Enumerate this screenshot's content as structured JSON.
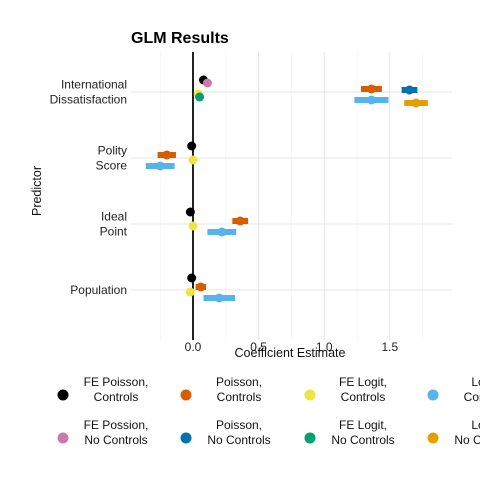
{
  "chart_data": {
    "type": "scatter",
    "subtype": "coefficient-plot",
    "title": "GLM Results",
    "xlabel": "Coefficient Estimate",
    "ylabel": "Predictor",
    "xlim": [
      -0.45,
      1.95
    ],
    "x_ticks": [
      "0.0",
      "0.5",
      "1.0",
      "1.5"
    ],
    "categories": [
      [
        "International",
        "Dissatisfaction"
      ],
      [
        "Polity",
        "Score"
      ],
      [
        "Ideal",
        "Point"
      ],
      [
        "Population"
      ]
    ],
    "reference_line_x": 0,
    "grid": true,
    "legend_position": "bottom",
    "series": [
      {
        "name": [
          "FE Poisson,",
          "Controls"
        ],
        "color": "#000000",
        "values": [
          0.08,
          -0.01,
          -0.02,
          -0.01
        ],
        "ci": [
          [
            0.06,
            0.1
          ],
          [
            -0.02,
            0.0
          ],
          [
            -0.03,
            -0.01
          ],
          [
            -0.02,
            0.0
          ]
        ]
      },
      {
        "name": [
          "FE Possion,",
          "No Controls"
        ],
        "color": "#CC79A7",
        "values": [
          0.11,
          null,
          null,
          null
        ],
        "ci": [
          [
            0.1,
            0.12
          ],
          null,
          null,
          null
        ]
      },
      {
        "name": [
          "Poisson,",
          "Controls"
        ],
        "color": "#D55E00",
        "values": [
          1.36,
          -0.2,
          0.36,
          0.06
        ],
        "ci": [
          [
            1.28,
            1.44
          ],
          [
            -0.27,
            -0.13
          ],
          [
            0.3,
            0.42
          ],
          [
            0.02,
            0.1
          ]
        ]
      },
      {
        "name": [
          "Poisson,",
          "No Controls"
        ],
        "color": "#0072B2",
        "values": [
          1.65,
          null,
          null,
          null
        ],
        "ci": [
          [
            1.59,
            1.71
          ],
          null,
          null,
          null
        ]
      },
      {
        "name": [
          "FE Logit,",
          "Controls"
        ],
        "color": "#F0E442",
        "values": [
          0.04,
          0.0,
          0.0,
          -0.02
        ],
        "ci": [
          [
            0.03,
            0.05
          ],
          [
            -0.01,
            0.01
          ],
          [
            -0.01,
            0.01
          ],
          [
            -0.03,
            -0.01
          ]
        ]
      },
      {
        "name": [
          "FE Logit,",
          "No Controls"
        ],
        "color": "#009E73",
        "values": [
          0.05,
          null,
          null,
          null
        ],
        "ci": [
          [
            0.04,
            0.06
          ],
          null,
          null,
          null
        ]
      },
      {
        "name": [
          "Logit,",
          "Controls"
        ],
        "color": "#56B4E9",
        "values": [
          1.36,
          -0.25,
          0.22,
          0.2
        ],
        "ci": [
          [
            1.23,
            1.49
          ],
          [
            -0.36,
            -0.14
          ],
          [
            0.11,
            0.33
          ],
          [
            0.08,
            0.32
          ]
        ]
      },
      {
        "name": [
          "Logit,",
          "No Controls"
        ],
        "color": "#E69F00",
        "values": [
          1.7,
          null,
          null,
          null
        ],
        "ci": [
          [
            1.61,
            1.79
          ],
          null,
          null,
          null
        ]
      }
    ]
  }
}
